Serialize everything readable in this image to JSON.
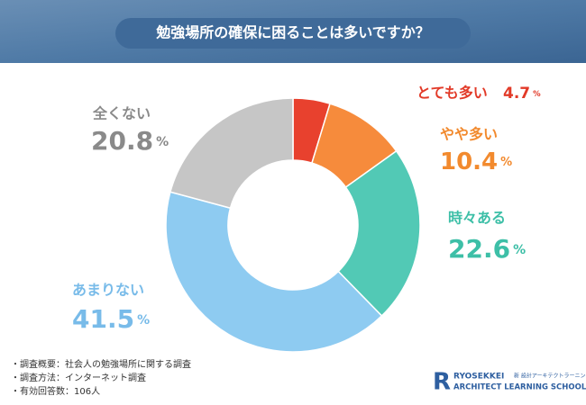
{
  "chart_data": {
    "type": "donut",
    "title": "勉強場所の確保に困ることは多いですか？",
    "categories": [
      "とても多い",
      "やや多い",
      "時々ある",
      "あまりない",
      "全くない"
    ],
    "values": [
      4.7,
      10.4,
      22.6,
      41.5,
      20.8
    ],
    "unit": "%",
    "colors": [
      "#e8412e",
      "#f68b3c",
      "#52c9b5",
      "#8ecbf1",
      "#c6c6c6"
    ],
    "label_colors": [
      "#e23a28",
      "#f28a2e",
      "#3dbfa7",
      "#78bbe9",
      "#8a8a8a"
    ]
  },
  "notes": [
    "・調査概要：社会人の勉強場所に関する調査",
    "・調査方法：インターネット調査",
    "・有効回答数：106人"
  ],
  "logo": {
    "name": "RYOSEKKEI",
    "tagline": "新 設計アーキテクトラーニング",
    "school": "ARCHITECT LEARNING SCHOOL"
  }
}
